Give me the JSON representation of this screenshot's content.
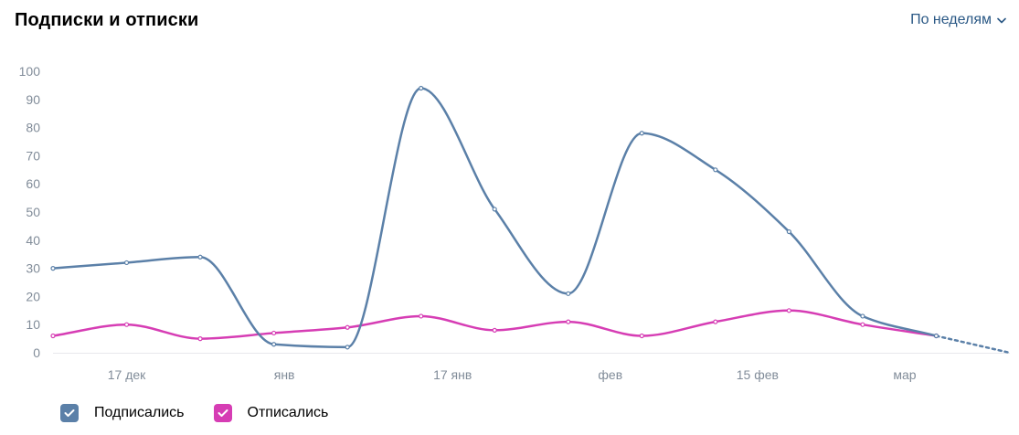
{
  "header": {
    "title": "Подписки и отписки",
    "period_label": "По неделям"
  },
  "colors": {
    "subscribed": "#5b80a8",
    "unsubscribed": "#d63db4",
    "grid": "#e7e8ec",
    "axis_text": "#818c99",
    "link": "#2a5885"
  },
  "icons": {
    "period_dropdown": "chevron-down-icon",
    "legend_check": "check-icon"
  },
  "chart_data": {
    "type": "line",
    "x": [
      "2022-12-10",
      "2022-12-17",
      "2022-12-24",
      "2022-12-31",
      "2023-01-07",
      "2023-01-14",
      "2023-01-21",
      "2023-01-28",
      "2023-02-04",
      "2023-02-11",
      "2023-02-18",
      "2023-02-25",
      "2023-03-04",
      "2023-03-11"
    ],
    "x_tick_labels": [
      "17 дек",
      "янв",
      "17 янв",
      "фев",
      "15 фев",
      "мар"
    ],
    "x_tick_dates": [
      "2022-12-17",
      "2023-01-01",
      "2023-01-17",
      "2023-02-01",
      "2023-02-15",
      "2023-03-01"
    ],
    "ylim": [
      0,
      100
    ],
    "y_ticks": [
      0,
      10,
      20,
      30,
      40,
      50,
      60,
      70,
      80,
      90,
      100
    ],
    "grid": false,
    "legend_placement": "bottom-left",
    "series": [
      {
        "name": "Подписались",
        "color": "#5b80a8",
        "values": [
          30,
          32,
          34,
          3,
          2,
          94,
          51,
          21,
          78,
          65,
          43,
          13,
          6,
          0
        ],
        "last_segment_dotted": true
      },
      {
        "name": "Отписались",
        "color": "#d63db4",
        "values": [
          6,
          10,
          5,
          7,
          9,
          13,
          8,
          11,
          6,
          11,
          15,
          10,
          6,
          null
        ]
      }
    ]
  },
  "legend": [
    {
      "label": "Подписались",
      "checked": true
    },
    {
      "label": "Отписались",
      "checked": true
    }
  ]
}
